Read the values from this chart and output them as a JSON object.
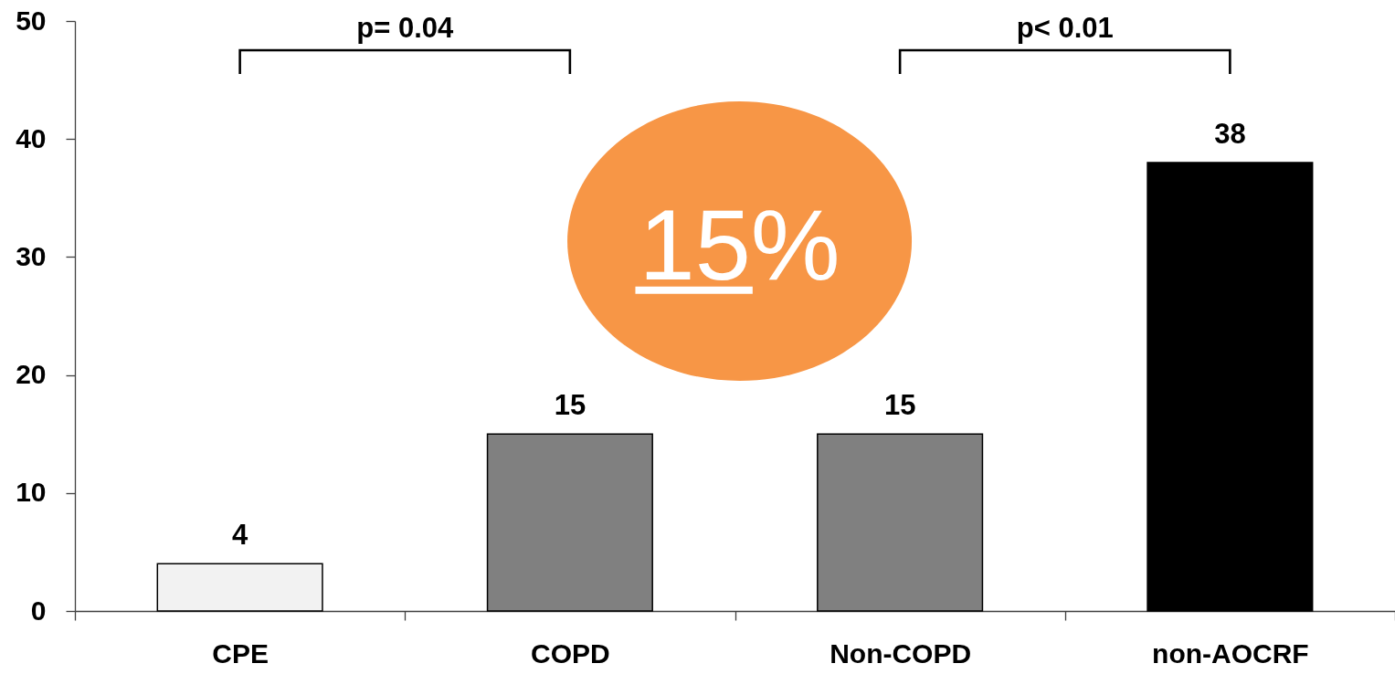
{
  "chart_data": {
    "type": "bar",
    "categories": [
      "CPE",
      "COPD",
      "Non-COPD",
      "non-AOCRF"
    ],
    "values": [
      4,
      15,
      15,
      38
    ],
    "colors": [
      "#f2f2f2",
      "#808080",
      "#808080",
      "#000000"
    ],
    "ylim": [
      0,
      50
    ],
    "yticks": [
      0,
      10,
      20,
      30,
      40,
      50
    ],
    "data_labels": true,
    "annotations": [
      "p= 0.04",
      "p< 0.01",
      "15%"
    ]
  }
}
